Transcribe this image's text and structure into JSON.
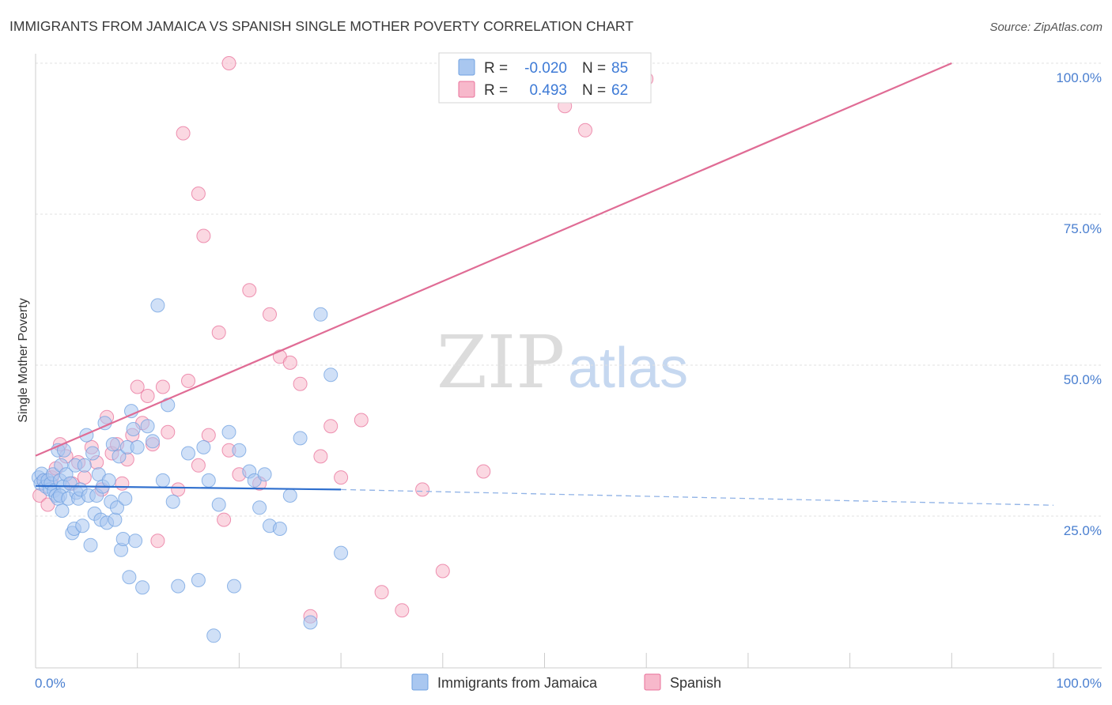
{
  "title": "IMMIGRANTS FROM JAMAICA VS SPANISH SINGLE MOTHER POVERTY CORRELATION CHART",
  "source": "Source: ZipAtlas.com",
  "watermark": {
    "zip": "ZIP",
    "atlas": "atlas"
  },
  "legend_box": {
    "rows": [
      {
        "r_label": "R =",
        "r_value": "-0.020",
        "n_label": "N =",
        "n_value": "85",
        "color": "#a9c7f0"
      },
      {
        "r_label": "R =",
        "r_value": "0.493",
        "n_label": "N =",
        "n_value": "62",
        "color": "#f7b8cb"
      }
    ]
  },
  "chart_data": {
    "type": "scatter",
    "title": "IMMIGRANTS FROM JAMAICA VS SPANISH SINGLE MOTHER POVERTY CORRELATION CHART",
    "xlabel": "",
    "ylabel": "Single Mother Poverty",
    "xlim": [
      0,
      100
    ],
    "ylim": [
      0,
      100
    ],
    "x_tick_labels": [
      "0.0%",
      "100.0%"
    ],
    "y_ticks": [
      25,
      50,
      75,
      100
    ],
    "y_tick_labels": [
      "25.0%",
      "50.0%",
      "75.0%",
      "100.0%"
    ],
    "grid": "horizontal dashed",
    "legend_position": "bottom-center",
    "series": [
      {
        "name": "Immigrants from Jamaica",
        "color": "#6fa0e0",
        "fill": "#a9c7f0",
        "trend": {
          "x0": 0,
          "y0": 30.0,
          "x1": 30,
          "y1": 29.4,
          "dashed_to_x": 100,
          "dashed_to_y": 26.8
        },
        "points": [
          [
            0.3,
            31.4
          ],
          [
            0.5,
            30.4
          ],
          [
            0.6,
            32.0
          ],
          [
            0.8,
            30.9
          ],
          [
            1.0,
            29.9
          ],
          [
            1.2,
            30.9
          ],
          [
            1.4,
            29.4
          ],
          [
            1.5,
            30.4
          ],
          [
            1.7,
            31.9
          ],
          [
            1.8,
            29.2
          ],
          [
            2.0,
            28.4
          ],
          [
            2.2,
            27.9
          ],
          [
            2.4,
            30.9
          ],
          [
            2.5,
            33.4
          ],
          [
            2.7,
            29.9
          ],
          [
            2.2,
            35.9
          ],
          [
            2.4,
            28.4
          ],
          [
            2.6,
            25.9
          ],
          [
            2.8,
            35.9
          ],
          [
            3.0,
            31.9
          ],
          [
            3.2,
            27.9
          ],
          [
            3.4,
            30.4
          ],
          [
            3.6,
            22.2
          ],
          [
            3.8,
            22.9
          ],
          [
            3.9,
            33.4
          ],
          [
            4.0,
            28.9
          ],
          [
            4.2,
            27.9
          ],
          [
            4.4,
            29.4
          ],
          [
            4.6,
            23.4
          ],
          [
            4.8,
            33.4
          ],
          [
            5.0,
            38.4
          ],
          [
            5.2,
            28.4
          ],
          [
            5.4,
            20.2
          ],
          [
            5.6,
            35.4
          ],
          [
            5.8,
            25.4
          ],
          [
            6.0,
            28.4
          ],
          [
            6.2,
            31.9
          ],
          [
            6.4,
            24.4
          ],
          [
            6.6,
            29.9
          ],
          [
            6.8,
            40.4
          ],
          [
            7.0,
            23.9
          ],
          [
            7.2,
            30.9
          ],
          [
            7.4,
            27.4
          ],
          [
            7.6,
            36.9
          ],
          [
            7.8,
            24.4
          ],
          [
            8.0,
            26.4
          ],
          [
            8.2,
            34.9
          ],
          [
            8.4,
            19.4
          ],
          [
            8.6,
            21.2
          ],
          [
            8.8,
            27.9
          ],
          [
            9.0,
            36.4
          ],
          [
            9.2,
            14.9
          ],
          [
            9.4,
            42.4
          ],
          [
            9.6,
            39.4
          ],
          [
            9.8,
            20.9
          ],
          [
            10.0,
            36.4
          ],
          [
            10.5,
            13.2
          ],
          [
            11.0,
            39.9
          ],
          [
            11.5,
            37.4
          ],
          [
            12.0,
            59.9
          ],
          [
            12.5,
            30.9
          ],
          [
            13.0,
            43.4
          ],
          [
            13.5,
            27.4
          ],
          [
            14.0,
            13.4
          ],
          [
            15.0,
            35.4
          ],
          [
            16.0,
            14.4
          ],
          [
            16.5,
            36.4
          ],
          [
            17.0,
            30.9
          ],
          [
            17.5,
            5.2
          ],
          [
            18.0,
            26.9
          ],
          [
            19.0,
            38.9
          ],
          [
            19.5,
            13.4
          ],
          [
            20.0,
            35.9
          ],
          [
            21.0,
            32.4
          ],
          [
            21.5,
            30.9
          ],
          [
            22.0,
            26.4
          ],
          [
            22.5,
            31.9
          ],
          [
            23.0,
            23.4
          ],
          [
            24.0,
            22.9
          ],
          [
            25.0,
            28.4
          ],
          [
            26.0,
            37.9
          ],
          [
            27.0,
            7.4
          ],
          [
            28.0,
            58.4
          ],
          [
            29.0,
            48.4
          ],
          [
            30.0,
            18.9
          ]
        ]
      },
      {
        "name": "Spanish",
        "color": "#e8709a",
        "fill": "#f7b8cb",
        "trend": {
          "x0": 0,
          "y0": 35.0,
          "x1": 90,
          "y1": 100
        },
        "points": [
          [
            0.4,
            28.4
          ],
          [
            0.8,
            30.9
          ],
          [
            1.2,
            26.9
          ],
          [
            1.6,
            31.4
          ],
          [
            2.0,
            32.9
          ],
          [
            2.4,
            36.9
          ],
          [
            3.0,
            34.9
          ],
          [
            3.6,
            30.4
          ],
          [
            4.2,
            33.9
          ],
          [
            4.8,
            31.4
          ],
          [
            5.5,
            36.4
          ],
          [
            6.0,
            33.9
          ],
          [
            6.5,
            29.4
          ],
          [
            7.0,
            41.4
          ],
          [
            7.5,
            35.4
          ],
          [
            8.0,
            36.9
          ],
          [
            8.5,
            30.4
          ],
          [
            9.0,
            34.4
          ],
          [
            9.5,
            38.4
          ],
          [
            10.0,
            46.4
          ],
          [
            10.5,
            40.4
          ],
          [
            11.0,
            44.9
          ],
          [
            11.5,
            36.9
          ],
          [
            12.0,
            20.9
          ],
          [
            12.5,
            46.4
          ],
          [
            13.0,
            38.9
          ],
          [
            14.0,
            29.4
          ],
          [
            15.0,
            47.4
          ],
          [
            16.0,
            33.4
          ],
          [
            17.0,
            38.4
          ],
          [
            18.0,
            55.4
          ],
          [
            18.5,
            24.4
          ],
          [
            19.0,
            35.9
          ],
          [
            20.0,
            31.9
          ],
          [
            21.0,
            62.4
          ],
          [
            22.0,
            30.4
          ],
          [
            23.0,
            58.4
          ],
          [
            24.0,
            51.4
          ],
          [
            25.0,
            50.4
          ],
          [
            26.0,
            46.9
          ],
          [
            27.0,
            8.4
          ],
          [
            28.0,
            34.9
          ],
          [
            29.0,
            39.9
          ],
          [
            30.0,
            31.4
          ],
          [
            32.0,
            40.9
          ],
          [
            34.0,
            12.4
          ],
          [
            36.0,
            9.4
          ],
          [
            38.0,
            29.4
          ],
          [
            40.0,
            15.9
          ],
          [
            44.0,
            32.4
          ],
          [
            46.0,
            100
          ],
          [
            48.0,
            100
          ],
          [
            50.0,
            100
          ],
          [
            52.0,
            92.9
          ],
          [
            54.0,
            88.9
          ],
          [
            56.0,
            100
          ],
          [
            58.0,
            100
          ],
          [
            60.0,
            97.4
          ],
          [
            14.5,
            88.4
          ],
          [
            16.0,
            78.4
          ],
          [
            16.5,
            71.4
          ],
          [
            19.0,
            100
          ]
        ]
      }
    ]
  },
  "bottom_legend": {
    "items": [
      {
        "label": "Immigrants from Jamaica",
        "color": "#a9c7f0"
      },
      {
        "label": "Spanish",
        "color": "#f7b8cb"
      }
    ]
  }
}
